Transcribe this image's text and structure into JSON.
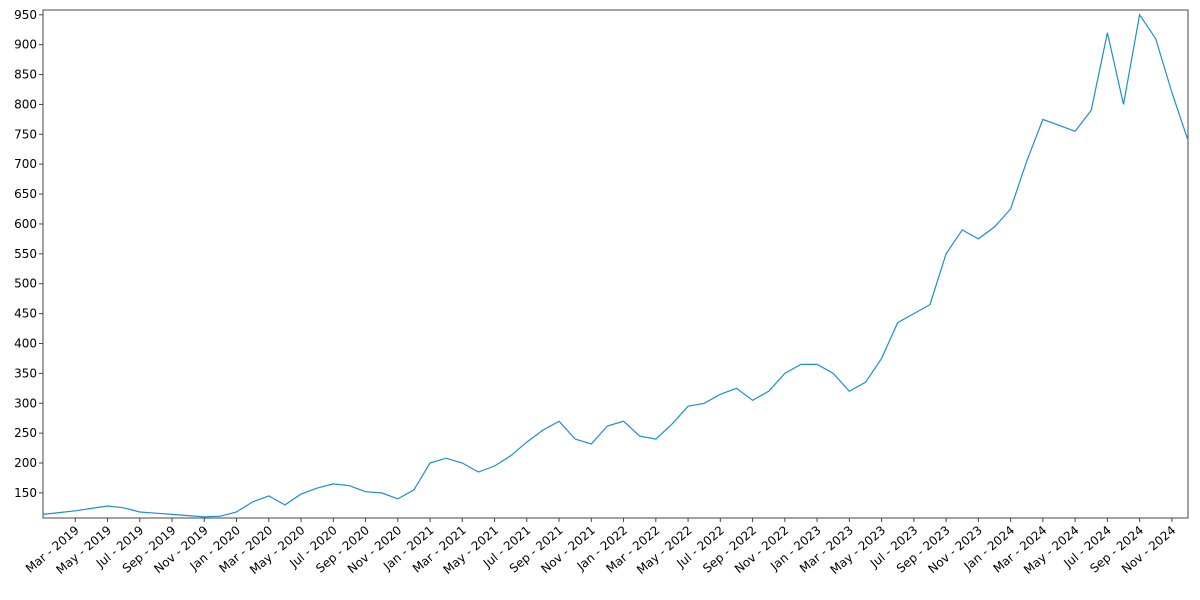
{
  "chart_data": {
    "type": "line",
    "x": [
      "2019-01",
      "2019-02",
      "2019-03",
      "2019-04",
      "2019-05",
      "2019-06",
      "2019-07",
      "2019-08",
      "2019-09",
      "2019-10",
      "2019-11",
      "2019-12",
      "2020-01",
      "2020-02",
      "2020-03",
      "2020-04",
      "2020-05",
      "2020-06",
      "2020-07",
      "2020-08",
      "2020-09",
      "2020-10",
      "2020-11",
      "2020-12",
      "2021-01",
      "2021-02",
      "2021-03",
      "2021-04",
      "2021-05",
      "2021-06",
      "2021-07",
      "2021-08",
      "2021-09",
      "2021-10",
      "2021-11",
      "2021-12",
      "2022-01",
      "2022-02",
      "2022-03",
      "2022-04",
      "2022-05",
      "2022-06",
      "2022-07",
      "2022-08",
      "2022-09",
      "2022-10",
      "2022-11",
      "2022-12",
      "2023-01",
      "2023-02",
      "2023-03",
      "2023-04",
      "2023-05",
      "2023-06",
      "2023-07",
      "2023-08",
      "2023-09",
      "2023-10",
      "2023-11",
      "2023-12",
      "2024-01",
      "2024-02",
      "2024-03",
      "2024-04",
      "2024-05",
      "2024-06",
      "2024-07",
      "2024-08",
      "2024-09",
      "2024-10",
      "2024-11",
      "2024-12"
    ],
    "series": [
      {
        "color": "#1a8fd1",
        "values": [
          114,
          117,
          120,
          124,
          128,
          125,
          118,
          116,
          114,
          112,
          110,
          111,
          118,
          135,
          145,
          130,
          148,
          158,
          165,
          162,
          152,
          150,
          140,
          155,
          200,
          208,
          200,
          185,
          195,
          212,
          235,
          255,
          270,
          240,
          232,
          262,
          270,
          245,
          240,
          265,
          295,
          300,
          315,
          325,
          305,
          320,
          350,
          365,
          365,
          350,
          320,
          335,
          375,
          435,
          450,
          465,
          550,
          590,
          575,
          595,
          625,
          705,
          775,
          765,
          755,
          790,
          920,
          800,
          950,
          910,
          820,
          740
        ]
      }
    ],
    "xlim": [
      "2019-01",
      "2024-12"
    ],
    "xticks": [
      {
        "value": "2019-03",
        "label": "Mar - 2019"
      },
      {
        "value": "2019-05",
        "label": "May - 2019"
      },
      {
        "value": "2019-07",
        "label": "Jul - 2019"
      },
      {
        "value": "2019-09",
        "label": "Sep - 2019"
      },
      {
        "value": "2019-11",
        "label": "Nov - 2019"
      },
      {
        "value": "2020-01",
        "label": "Jan - 2020"
      },
      {
        "value": "2020-03",
        "label": "Mar - 2020"
      },
      {
        "value": "2020-05",
        "label": "May - 2020"
      },
      {
        "value": "2020-07",
        "label": "Jul - 2020"
      },
      {
        "value": "2020-09",
        "label": "Sep - 2020"
      },
      {
        "value": "2020-11",
        "label": "Nov - 2020"
      },
      {
        "value": "2021-01",
        "label": "Jan - 2021"
      },
      {
        "value": "2021-03",
        "label": "Mar - 2021"
      },
      {
        "value": "2021-05",
        "label": "May - 2021"
      },
      {
        "value": "2021-07",
        "label": "Jul - 2021"
      },
      {
        "value": "2021-09",
        "label": "Sep - 2021"
      },
      {
        "value": "2021-11",
        "label": "Nov - 2021"
      },
      {
        "value": "2022-01",
        "label": "Jan - 2022"
      },
      {
        "value": "2022-03",
        "label": "Mar - 2022"
      },
      {
        "value": "2022-05",
        "label": "May - 2022"
      },
      {
        "value": "2022-07",
        "label": "Jul - 2022"
      },
      {
        "value": "2022-09",
        "label": "Sep - 2022"
      },
      {
        "value": "2022-11",
        "label": "Nov - 2022"
      },
      {
        "value": "2023-01",
        "label": "Jan - 2023"
      },
      {
        "value": "2023-03",
        "label": "Mar - 2023"
      },
      {
        "value": "2023-05",
        "label": "May - 2023"
      },
      {
        "value": "2023-07",
        "label": "Jul - 2023"
      },
      {
        "value": "2023-09",
        "label": "Sep - 2023"
      },
      {
        "value": "2023-11",
        "label": "Nov - 2023"
      },
      {
        "value": "2024-01",
        "label": "Jan - 2024"
      },
      {
        "value": "2024-03",
        "label": "Mar - 2024"
      },
      {
        "value": "2024-05",
        "label": "May - 2024"
      },
      {
        "value": "2024-07",
        "label": "Jul - 2024"
      },
      {
        "value": "2024-09",
        "label": "Sep - 2024"
      },
      {
        "value": "2024-11",
        "label": "Nov - 2024"
      }
    ],
    "ylim": [
      108,
      958
    ],
    "yticks": [
      150,
      200,
      250,
      300,
      350,
      400,
      450,
      500,
      550,
      600,
      650,
      700,
      750,
      800,
      850,
      900,
      950
    ]
  }
}
